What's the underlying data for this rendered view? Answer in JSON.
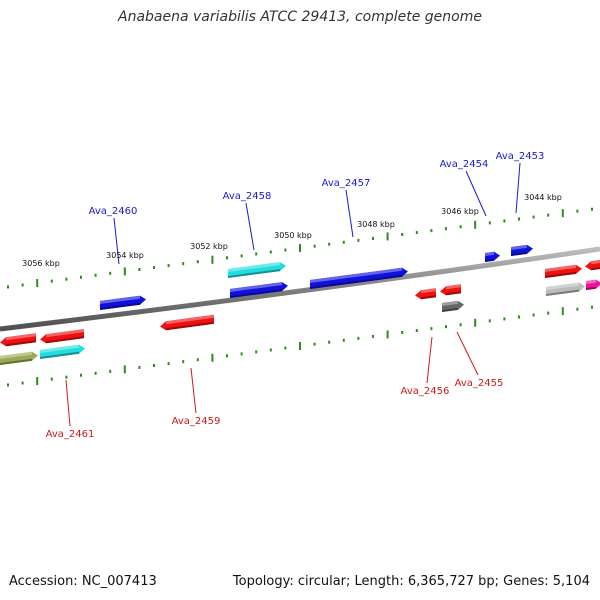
{
  "title": "Anabaena variabilis ATCC 29413, complete genome",
  "footer": {
    "accession": "Accession: NC_007413",
    "summary": "Topology: circular; Length: 6,365,727 bp; Genes: 5,104"
  },
  "colors": {
    "backbone": "#808080",
    "tick": "#2e8b1e",
    "forward_label": "#1a1acc",
    "reverse_label": "#cc1a1a",
    "blue": "#1111dd",
    "cyan": "#22dddd",
    "red": "#ee1111",
    "grey": "#666666",
    "pink": "#ee1199",
    "olive": "#99aa55"
  },
  "scale_labels": [
    "3056 kbp",
    "3054 kbp",
    "3052 kbp",
    "3050 kbp",
    "3048 kbp",
    "3046 kbp",
    "3044 kbp"
  ],
  "gene_labels_forward": [
    "Ava_2460",
    "Ava_2458",
    "Ava_2457",
    "Ava_2454",
    "Ava_2453"
  ],
  "gene_labels_reverse": [
    "Ava_2461",
    "Ava_2459",
    "Ava_2456",
    "Ava_2455"
  ]
}
